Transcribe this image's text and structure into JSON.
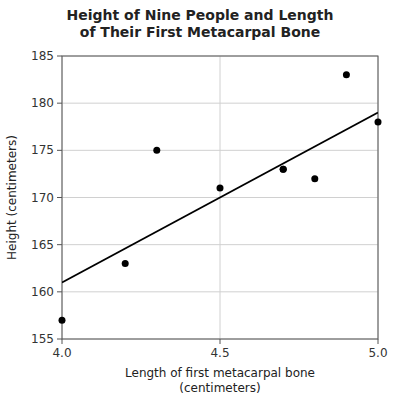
{
  "chart_data": {
    "type": "scatter",
    "title": "Height of Nine People and Length\nof Their First Metacarpal Bone",
    "xlabel": "Length of first metacarpal bone\n(centimeters)",
    "ylabel": "Height (centimeters)",
    "series": [
      {
        "type": "scatter",
        "color": "#000000",
        "x": [
          4.0,
          4.2,
          4.3,
          4.5,
          4.7,
          4.7,
          4.8,
          4.9,
          5.0
        ],
        "values": [
          157,
          163,
          175,
          171,
          173,
          173,
          172,
          183,
          178
        ]
      },
      {
        "type": "line",
        "color": "#000000",
        "x": [
          4.0,
          5.0
        ],
        "values": [
          161.0,
          179.0
        ]
      }
    ],
    "xlim": [
      4.0,
      5.0
    ],
    "ylim": [
      155,
      185
    ],
    "xticks": [
      {
        "value": 4.0,
        "label": "4.0"
      },
      4.5,
      {
        "value": 5.0,
        "label": "5.0"
      }
    ],
    "yticks": [
      155,
      160,
      165,
      170,
      175,
      180,
      185
    ],
    "grid": true
  }
}
